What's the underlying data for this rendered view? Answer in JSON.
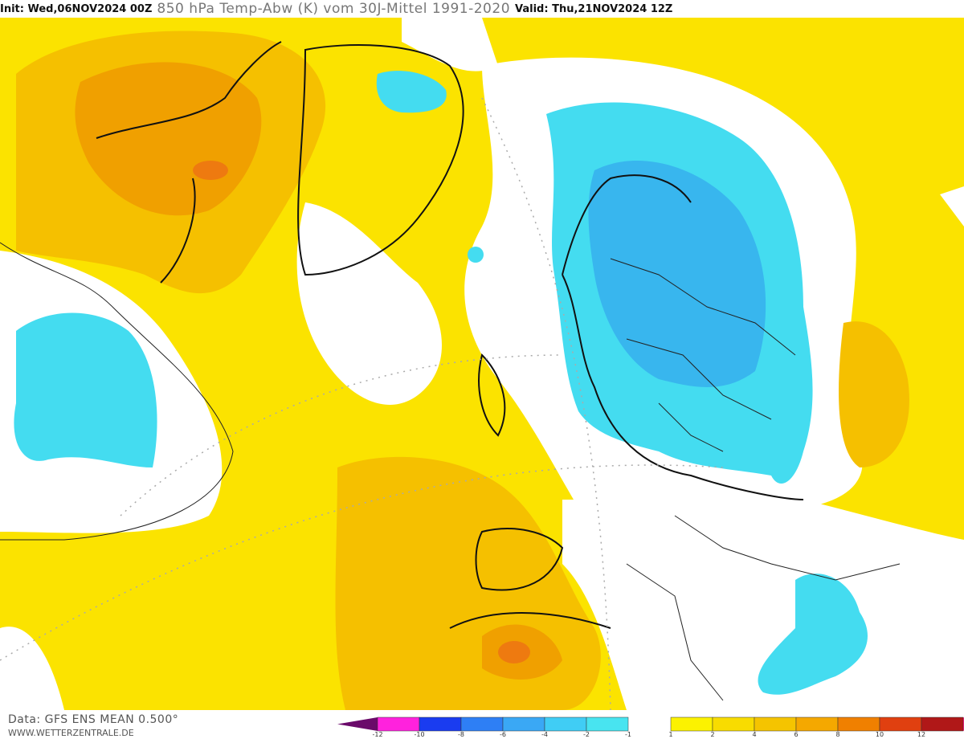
{
  "header": {
    "init": "Init: Wed,06NOV2024 00Z",
    "title": "850 hPa Temp-Abw (K) vom 30J-Mittel 1991-2020",
    "valid": "Valid: Thu,21NOV2024 12Z"
  },
  "footer": {
    "data_source": "Data: GFS ENS MEAN 0.500°",
    "website": "WWW.WETTERZENTRALE.DE"
  },
  "legend": {
    "neg_colors": [
      "#ff22dd",
      "#1a3cf0",
      "#2e7ff5",
      "#3aa8f5",
      "#40cdf5",
      "#48e4f0"
    ],
    "neg_labels": [
      "-12",
      "-10",
      "-8",
      "-6",
      "-4",
      "-2",
      "-1"
    ],
    "pos_colors": [
      "#fcf200",
      "#f8dc00",
      "#f5c400",
      "#f5a800",
      "#f08000",
      "#e04010",
      "#b01818"
    ],
    "pos_labels": [
      "1",
      "2",
      "4",
      "6",
      "8",
      "10",
      "12"
    ],
    "low_arrow_color": "#6a0a6a",
    "high_arrow_color": "#e0207a"
  },
  "colors": {
    "yellow": "#fbe300",
    "gold": "#f7c800",
    "orange": "#f2aa10",
    "cyan": "#44dcf0",
    "blue": "#3cb0ee",
    "coast": "#111111"
  }
}
